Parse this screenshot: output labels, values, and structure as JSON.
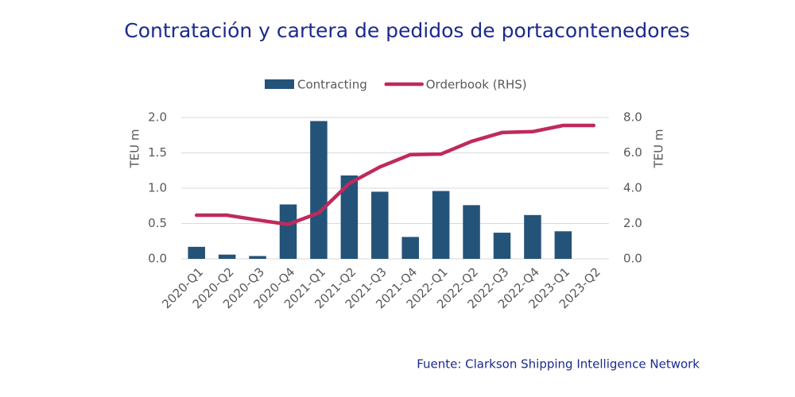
{
  "chart_data": {
    "type": "bar-line",
    "title": "Contratación y cartera de pedidos de portacontenedores",
    "source": "Fuente:  Clarkson Shipping Intelligence Network",
    "y_label": "TEU m",
    "y2_label": "TEU m",
    "categories": [
      "2020-Q1",
      "2020-Q2",
      "2020-Q3",
      "2020-Q4",
      "2021-Q1",
      "2021-Q2",
      "2021-Q3",
      "2021-Q4",
      "2022-Q1",
      "2022-Q2",
      "2022-Q3",
      "2022-Q4",
      "2023-Q1",
      "2023-Q2"
    ],
    "series": [
      {
        "name": "Contracting",
        "type": "bar",
        "color": "#245379",
        "values": [
          0.17,
          0.06,
          0.04,
          0.77,
          1.95,
          1.18,
          0.95,
          0.31,
          0.96,
          0.76,
          0.37,
          0.62,
          0.39,
          null
        ]
      },
      {
        "name": "Orderbook (RHS)",
        "type": "line",
        "axis": "y2",
        "color": "#bf2a5c",
        "values": [
          2.47,
          2.47,
          2.2,
          1.95,
          2.6,
          4.27,
          5.2,
          5.9,
          5.93,
          6.65,
          7.15,
          7.2,
          7.55,
          7.55
        ]
      }
    ],
    "ylim": [
      0,
      2
    ],
    "yticks": [
      {
        "value": 0,
        "label": "0.0"
      },
      0.5,
      {
        "value": 1,
        "label": "1.0"
      },
      1.5,
      {
        "value": 2,
        "label": "2.0"
      }
    ],
    "y2lim": [
      0,
      8
    ],
    "y2ticks": [
      {
        "value": 0,
        "label": "0.0"
      },
      {
        "value": 2,
        "label": "2.0"
      },
      {
        "value": 4,
        "label": "4.0"
      },
      {
        "value": 6,
        "label": "6.0"
      },
      {
        "value": 8,
        "label": "8.0"
      }
    ],
    "grid": true,
    "legend": "top"
  }
}
